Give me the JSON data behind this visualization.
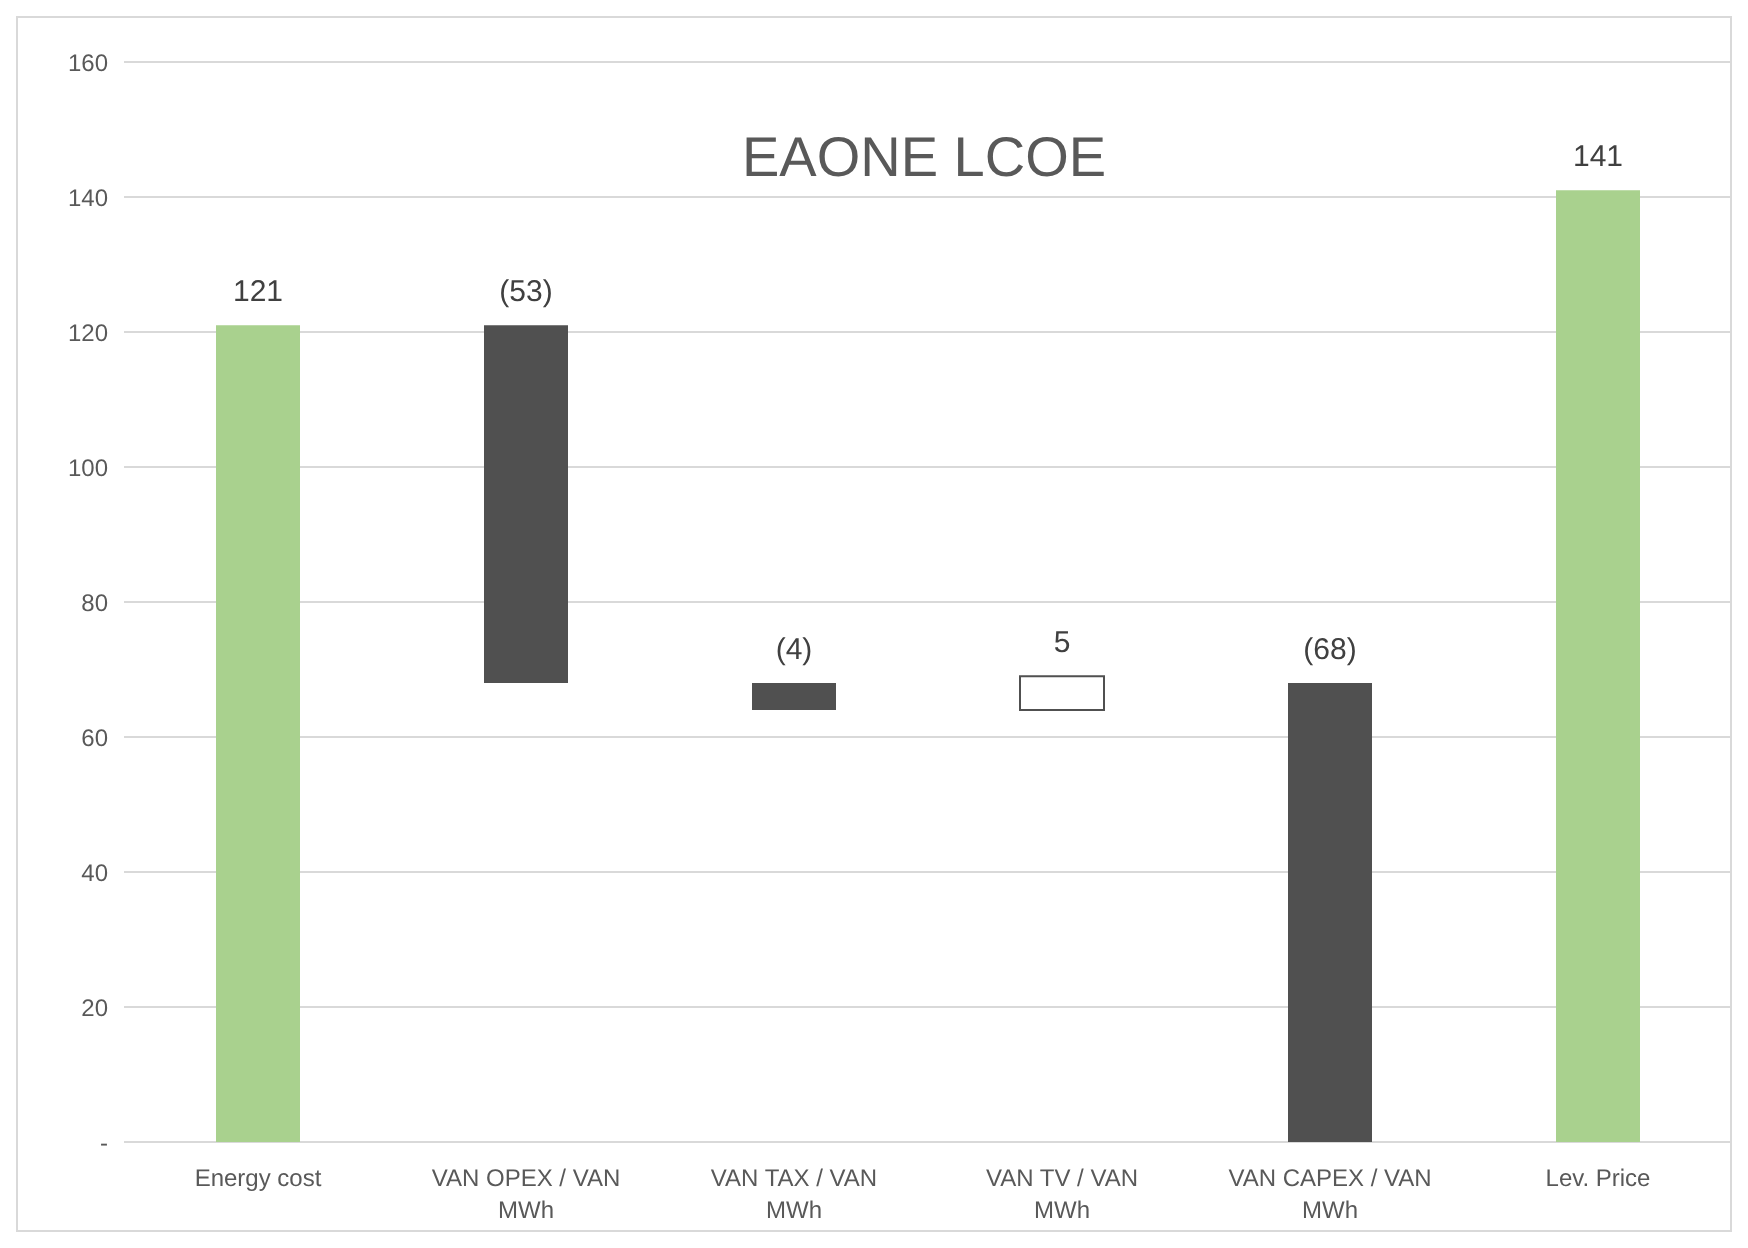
{
  "chart_data": {
    "type": "bar",
    "title": "EAONE LCOE",
    "categories": [
      "Energy cost",
      "VAN OPEX / VAN MWh",
      "VAN TAX / VAN MWh",
      "VAN TV / VAN MWh",
      "VAN CAPEX / VAN MWh",
      "Lev. Price"
    ],
    "values": [
      121,
      -53,
      -4,
      5,
      -68,
      141
    ],
    "base": [
      0,
      121,
      68,
      64,
      68,
      0
    ],
    "colors": [
      "#a9d18e",
      "#505050",
      "#505050",
      "#ffffff",
      "#505050",
      "#a9d18e"
    ],
    "value_labels": [
      "121",
      "(53)",
      "(4)",
      "5",
      "(68)",
      "141"
    ],
    "ylim": [
      0,
      160
    ],
    "yticks": [
      {
        "value": 0,
        "label": "-"
      },
      20,
      40,
      60,
      80,
      100,
      120,
      140,
      160
    ],
    "grid": "y"
  }
}
